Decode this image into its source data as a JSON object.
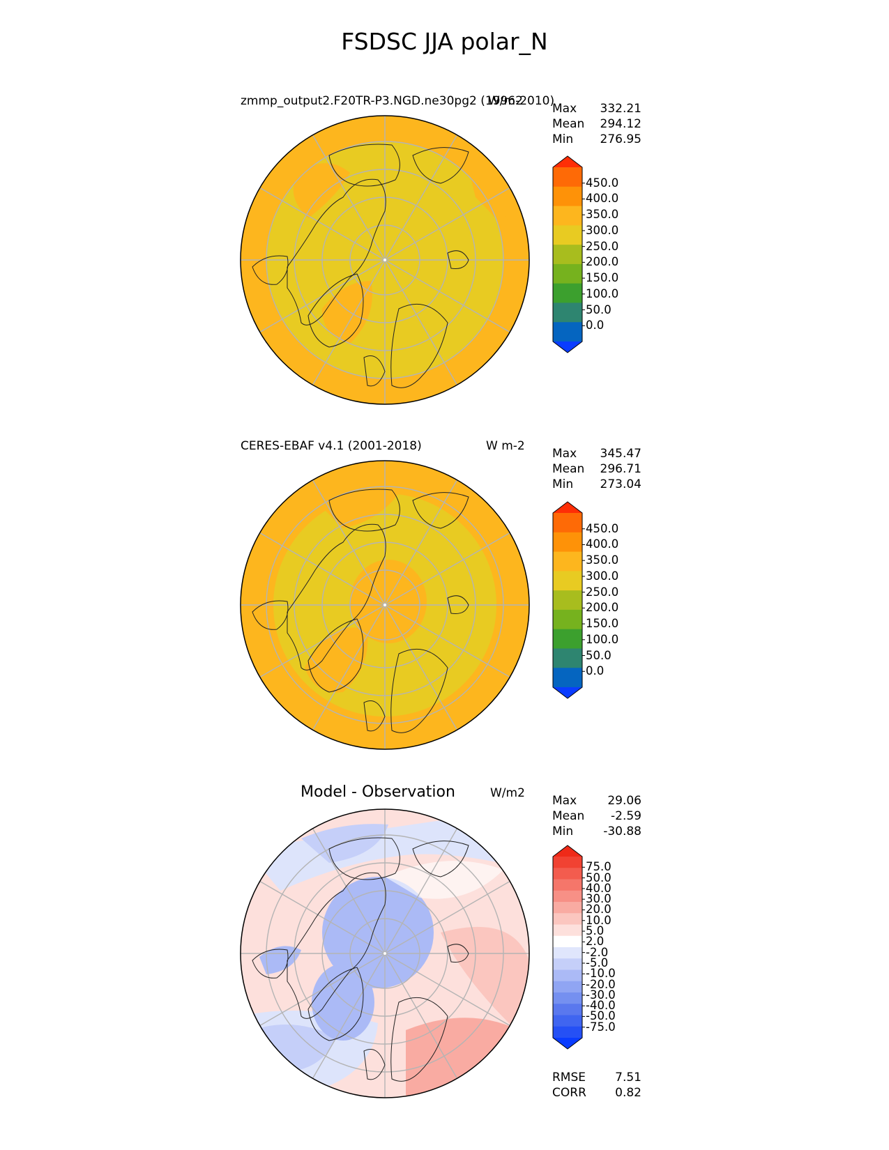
{
  "title": "FSDSC JJA polar_N",
  "panels": [
    {
      "id": "test",
      "left_title": "zmmp_output2.F20TR-P3.NGD.ne30pg2 (1996-2010)",
      "units": "W/m2",
      "stats": [
        {
          "label": "Max",
          "value": "332.21"
        },
        {
          "label": "Mean",
          "value": "294.12"
        },
        {
          "label": "Min",
          "value": "276.95"
        }
      ],
      "colorbar": {
        "colors": [
          "#0a3cff",
          "#0565c0",
          "#2e8570",
          "#3ca02e",
          "#76b21e",
          "#a8bd1e",
          "#e8cb22",
          "#fdb61e",
          "#fe9208",
          "#fe6a06",
          "#fe2e06"
        ],
        "ticks": [
          "450.0",
          "400.0",
          "350.0",
          "300.0",
          "250.0",
          "200.0",
          "150.0",
          "100.0",
          "50.0",
          "0.0"
        ]
      }
    },
    {
      "id": "reference",
      "left_title": "CERES-EBAF v4.1 (2001-2018)",
      "units": "W m-2",
      "stats": [
        {
          "label": "Max",
          "value": "345.47"
        },
        {
          "label": "Mean",
          "value": "296.71"
        },
        {
          "label": "Min",
          "value": "273.04"
        }
      ],
      "colorbar": {
        "colors": [
          "#0a3cff",
          "#0565c0",
          "#2e8570",
          "#3ca02e",
          "#76b21e",
          "#a8bd1e",
          "#e8cb22",
          "#fdb61e",
          "#fe9208",
          "#fe6a06",
          "#fe2e06"
        ],
        "ticks": [
          "450.0",
          "400.0",
          "350.0",
          "300.0",
          "250.0",
          "200.0",
          "150.0",
          "100.0",
          "50.0",
          "0.0"
        ]
      }
    },
    {
      "id": "difference",
      "center_title": "Model - Observation",
      "units": "W/m2",
      "stats": [
        {
          "label": "Max",
          "value": "29.06"
        },
        {
          "label": "Mean",
          "value": "-2.59"
        },
        {
          "label": "Min",
          "value": "-30.88"
        }
      ],
      "bottom_stats": [
        {
          "label": "RMSE",
          "value": "7.51"
        },
        {
          "label": "CORR",
          "value": "0.82"
        }
      ],
      "colorbar": {
        "colors": [
          "#0a3cff",
          "#2550f5",
          "#4065f0",
          "#5a78ee",
          "#7590f0",
          "#90a5f3",
          "#abbaf6",
          "#c5cff9",
          "#e0e6fc",
          "#ffffff",
          "#fde0dc",
          "#fbc6bf",
          "#f9aba2",
          "#f79086",
          "#f5766a",
          "#f35c4e",
          "#f14232",
          "#ef2a18"
        ],
        "ticks": [
          "75.0",
          "50.0",
          "40.0",
          "30.0",
          "20.0",
          "10.0",
          "5.0",
          "2.0",
          "-2.0",
          "-5.0",
          "-10.0",
          "-20.0",
          "-30.0",
          "-40.0",
          "-50.0",
          "-75.0"
        ]
      }
    }
  ]
}
